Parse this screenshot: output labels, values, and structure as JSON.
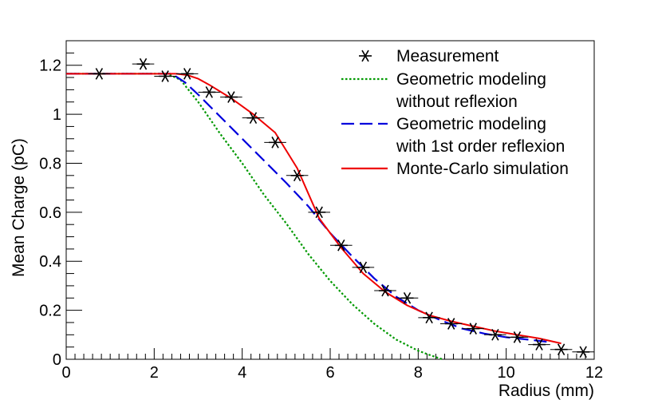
{
  "chart_data": {
    "type": "line",
    "xlabel": "Radius (mm)",
    "ylabel": "Mean Charge (pC)",
    "xlim": [
      0,
      12
    ],
    "ylim": [
      0,
      1.3
    ],
    "x_ticks": [
      0,
      2,
      4,
      6,
      8,
      10,
      12
    ],
    "y_ticks": [
      0,
      0.2,
      0.4,
      0.6,
      0.8,
      1.0,
      1.2
    ],
    "x_tick_labels": [
      "0",
      "2",
      "4",
      "6",
      "8",
      "10",
      "12"
    ],
    "y_tick_labels": [
      "0",
      "0.2",
      "0.4",
      "0.6",
      "0.8",
      "1",
      "1.2"
    ],
    "grid": false,
    "legend_position": "top-right",
    "measurement": {
      "name": "Measurement",
      "color": "#000000",
      "marker": "asterisk",
      "x_error": 0.25,
      "x": [
        0.75,
        1.75,
        2.25,
        2.75,
        3.25,
        3.75,
        4.25,
        4.75,
        5.25,
        5.75,
        6.25,
        6.75,
        7.25,
        7.75,
        8.25,
        8.75,
        9.25,
        9.75,
        10.25,
        10.75,
        11.25,
        11.75
      ],
      "y": [
        1.165,
        1.205,
        1.155,
        1.165,
        1.09,
        1.07,
        0.985,
        0.885,
        0.75,
        0.6,
        0.465,
        0.375,
        0.28,
        0.25,
        0.17,
        0.145,
        0.125,
        0.1,
        0.09,
        0.06,
        0.04,
        0.03
      ]
    },
    "series": [
      {
        "name": "Geometric modeling without reflexion",
        "legend_lines": [
          "Geometric modeling",
          "without reflexion"
        ],
        "color": "#009900",
        "style": "dotted",
        "x": [
          0,
          2.3,
          2.6,
          3.0,
          3.5,
          4.0,
          4.5,
          5.0,
          5.5,
          6.0,
          6.5,
          7.0,
          7.5,
          8.0,
          8.3,
          8.55
        ],
        "y": [
          1.165,
          1.165,
          1.14,
          1.05,
          0.92,
          0.8,
          0.67,
          0.555,
          0.43,
          0.32,
          0.225,
          0.145,
          0.08,
          0.035,
          0.015,
          0.0
        ]
      },
      {
        "name": "Geometric modeling with 1st order reflexion",
        "legend_lines": [
          "Geometric modeling",
          "with 1st order reflexion"
        ],
        "color": "#0000dd",
        "style": "dashed",
        "x": [
          0,
          2.4,
          2.7,
          3.0,
          3.5,
          4.0,
          4.5,
          5.0,
          5.5,
          6.0,
          6.5,
          7.0,
          7.5,
          8.0,
          8.5,
          9.0,
          9.5,
          10.0,
          10.5,
          11.0
        ],
        "y": [
          1.165,
          1.165,
          1.13,
          1.08,
          0.99,
          0.9,
          0.81,
          0.72,
          0.625,
          0.515,
          0.42,
          0.33,
          0.255,
          0.2,
          0.16,
          0.125,
          0.105,
          0.09,
          0.08,
          0.07
        ]
      },
      {
        "name": "Monte-Carlo simulation",
        "legend_lines": [
          "Monte-Carlo simulation"
        ],
        "color": "#ee0000",
        "style": "solid",
        "x": [
          0,
          2.5,
          2.75,
          3.0,
          3.25,
          3.75,
          4.25,
          4.75,
          5.25,
          5.75,
          6.25,
          6.75,
          7.25,
          7.75,
          8.25,
          8.75,
          9.25,
          9.75,
          10.25,
          10.75,
          11.25
        ],
        "y": [
          1.165,
          1.165,
          1.16,
          1.145,
          1.12,
          1.065,
          1.0,
          0.925,
          0.78,
          0.575,
          0.455,
          0.35,
          0.275,
          0.22,
          0.18,
          0.155,
          0.135,
          0.115,
          0.1,
          0.085,
          0.065
        ]
      }
    ]
  }
}
